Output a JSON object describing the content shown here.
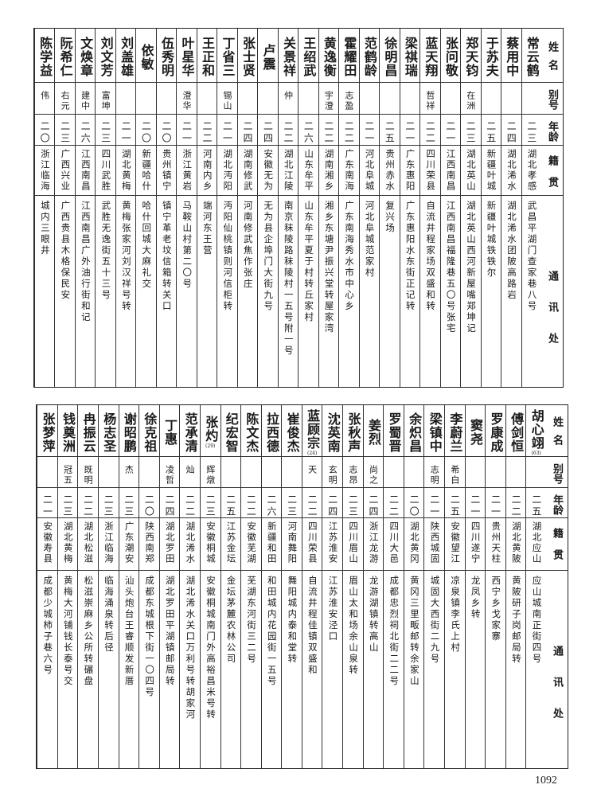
{
  "headers": {
    "name": "姓名",
    "alias": "别号",
    "age": "年龄",
    "native": "籍贯",
    "address": "通讯处"
  },
  "top": {
    "rows": [
      {
        "name": "常云鹤",
        "alias": "",
        "age": "二三",
        "native": "湖北孝感",
        "address": "武昌平湖门查家巷八号"
      },
      {
        "name": "蔡用中",
        "alias": "",
        "age": "二四",
        "native": "湖北浠水",
        "address": "湖北浠水团陂高路岩"
      },
      {
        "name": "于苏夫",
        "alias": "",
        "age": "二五",
        "native": "新疆叶城",
        "address": "新疆叶城铁铁尔"
      },
      {
        "name": "郑天钧",
        "alias": "在洲",
        "age": "二三",
        "native": "湖北英山",
        "address": "湖北英山西河新屋嘴郑坤记"
      },
      {
        "name": "张问敬",
        "alias": "",
        "age": "二一",
        "native": "江西南昌",
        "address": "江西南昌福隆巷五〇号张宅"
      },
      {
        "name": "蓝天翔",
        "alias": "哲祥",
        "age": "二二",
        "native": "四川荣县",
        "address": "自流井程家场双盛和转"
      },
      {
        "name": "梁祺瑞",
        "alias": "",
        "age": "二一",
        "native": "广东惠阳",
        "address": "广东惠阳水东街正记转"
      },
      {
        "name": "徐明昌",
        "alias": "",
        "age": "二五",
        "native": "贵州赤水",
        "address": "复兴场"
      },
      {
        "name": "范鹤龄",
        "alias": "",
        "age": "二一",
        "native": "河北阜城",
        "address": "河北阜城范家村"
      },
      {
        "name": "霍耀田",
        "alias": "志盈",
        "age": "二二",
        "native": "广东南海",
        "address": "广东南海秀水市中心乡"
      },
      {
        "name": "黄逸衡",
        "alias": "宇澄",
        "age": "二二",
        "native": "湖南湘乡",
        "address": "湘乡东塘尹振兴堂转屋家湾"
      },
      {
        "name": "王绍武",
        "alias": "",
        "age": "二六",
        "native": "山东牟平",
        "address": "山东牟平夏于村转丘家村"
      },
      {
        "name": "关景祥",
        "alias": "仲",
        "age": "二二",
        "native": "湖北江陵",
        "address": "南京秣陵路秣陵村一五号附一号"
      },
      {
        "name": "卢震",
        "alias": "",
        "age": "二四",
        "native": "安徽无为",
        "address": "无为县企埠门大街九号"
      },
      {
        "name": "张士贤",
        "alias": "",
        "age": "二四",
        "native": "湖南修武",
        "address": "河南修武焦作张庄"
      },
      {
        "name": "丁省三",
        "alias": "锡山",
        "age": "二一",
        "native": "湖北沔阳",
        "address": "沔阳仙桃镇则河信柜转"
      },
      {
        "name": "王正和",
        "alias": "",
        "age": "二二",
        "native": "河南内乡",
        "address": "端河东王营"
      },
      {
        "name": "叶星华",
        "alias": "澄华",
        "age": "二一",
        "native": "浙江黄岩",
        "address": "马鞍山村第二〇号"
      },
      {
        "name": "伍秀明",
        "alias": "",
        "age": "二〇",
        "native": "贵州镇宁",
        "address": "镇宁革老坟信箱转关口"
      },
      {
        "name": "依敏",
        "alias": "",
        "age": "二〇",
        "native": "新疆哈什",
        "address": "哈什回城大麻礼交"
      },
      {
        "name": "刘盖雄",
        "alias": "",
        "age": "二一",
        "native": "湖北黄梅",
        "address": "黄梅张家河刘汉祥号转"
      },
      {
        "name": "刘文芳",
        "alias": "富坤",
        "age": "二三",
        "native": "四川武胜",
        "address": "武胜无逸街五十三号"
      },
      {
        "name": "文焕章",
        "alias": "建中",
        "age": "二六",
        "native": "江西南昌",
        "address": "江西南昌广外油行街和记"
      },
      {
        "name": "阮希仁",
        "alias": "右元",
        "age": "二三",
        "native": "广西兴业",
        "address": "广西贵县木格保民安"
      },
      {
        "name": "陈学益",
        "alias": "伟",
        "age": "二〇",
        "native": "浙江临海",
        "address": "城内三眼井"
      }
    ]
  },
  "bottom": {
    "rows": [
      {
        "name": "胡心翊",
        "note": "(63)",
        "alias": "",
        "age": "二五",
        "native": "湖北应山",
        "address": "应山城南正街四号"
      },
      {
        "name": "傅剑恒",
        "alias": "",
        "age": "二二",
        "native": "湖北黄陂",
        "address": "黄陂研子岗邮局转"
      },
      {
        "name": "罗康成",
        "alias": "",
        "age": "二一",
        "native": "贵州天柱",
        "address": "西宁乡戈家寨"
      },
      {
        "name": "窦尧",
        "alias": "",
        "age": "二一",
        "native": "四川遂宁",
        "address": "龙凤乡转"
      },
      {
        "name": "李蔚兰",
        "alias": "希白",
        "age": "二五",
        "native": "安徽望江",
        "address": "凉泉镇李氏上村"
      },
      {
        "name": "梁镇中",
        "alias": "志明",
        "age": "二一",
        "native": "陕西城固",
        "address": "城固大西街二九号"
      },
      {
        "name": "余炽昌",
        "alias": "",
        "age": "二〇",
        "native": "湖北黄冈",
        "address": "黄冈三里畈邮转余家山"
      },
      {
        "name": "罗蜀晋",
        "alias": "",
        "age": "二二",
        "native": "四川大邑",
        "address": "成都忠烈祠北街二二号"
      },
      {
        "name": "姜烈",
        "alias": "尚之",
        "age": "二四",
        "native": "浙江龙游",
        "address": "龙游湖镇转高山"
      },
      {
        "name": "张秋声",
        "alias": "志昂",
        "age": "二三",
        "native": "四川眉山",
        "address": "眉山太和场余山泉转"
      },
      {
        "name": "沈英南",
        "alias": "玄明",
        "age": "二四",
        "native": "江苏淮安",
        "address": "江苏淮安泾口"
      },
      {
        "name": "蓝顾宗",
        "note": "(24)",
        "alias": "天",
        "age": "二二",
        "native": "四川荣县",
        "address": "自流井程佳镇双盛和"
      },
      {
        "name": "崔俊杰",
        "alias": "",
        "age": "二三",
        "native": "河南舞阳",
        "address": "舞阳城内泰和堂转"
      },
      {
        "name": "拉西德",
        "alias": "",
        "age": "二六",
        "native": "新疆和田",
        "address": "和田城内花园街一五号"
      },
      {
        "name": "陈文杰",
        "alias": "",
        "age": "二二",
        "native": "安徽芜湖",
        "address": "芜湖东河街三二号"
      },
      {
        "name": "纪宏智",
        "alias": "",
        "age": "二五",
        "native": "江苏金坛",
        "address": "金坛茅麓农林公司"
      },
      {
        "name": "张灼",
        "note": "(29)",
        "alias": "辉燉",
        "age": "二三",
        "native": "安徽桐城",
        "address": "安徽桐城南门外高裕昌米号转"
      },
      {
        "name": "范承清",
        "alias": "灿",
        "age": "二二",
        "native": "湖北浠水",
        "address": "湖北浠水关口万利号转胡家河"
      },
      {
        "name": "丁惠",
        "alias": "凌哲",
        "age": "二四",
        "native": "湖北罗田",
        "address": "湖北罗田平湖镇邮局转"
      },
      {
        "name": "徐克祖",
        "alias": "",
        "age": "二〇",
        "native": "陕西南郑",
        "address": "成都东城根下街一〇四号"
      },
      {
        "name": "谢昭鹏",
        "alias": "杰",
        "age": "二三",
        "native": "广东潮安",
        "address": "汕头炮台王睿顺发新厝"
      },
      {
        "name": "杨志圣",
        "alias": "",
        "age": "二三",
        "native": "浙江临海",
        "address": "临海涌泉转后径"
      },
      {
        "name": "冉振云",
        "alias": "既明",
        "age": "二二",
        "native": "湖北松滋",
        "address": "松滋崇麻乡公所转碾盘"
      },
      {
        "name": "钱奠洲",
        "alias": "冠五",
        "age": "二三",
        "native": "湖北黄梅",
        "address": "黄梅大河铺钱长泰号交"
      },
      {
        "name": "张梦萍",
        "alias": "",
        "age": "二一",
        "native": "安徽寿县",
        "address": "成都少城柿子巷六号"
      }
    ]
  },
  "page_number": "1092"
}
